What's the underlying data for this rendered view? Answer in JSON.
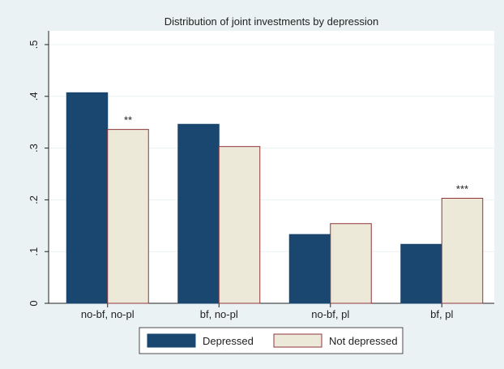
{
  "chart_data": {
    "type": "bar",
    "title": "Distribution of joint investments by depression",
    "categories": [
      "no-bf, no-pl",
      "bf, no-pl",
      "no-bf, pl",
      "bf, pl"
    ],
    "series": [
      {
        "name": "Depressed",
        "color": "#1a476f",
        "values": [
          0.407,
          0.346,
          0.133,
          0.114
        ]
      },
      {
        "name": "Not depressed",
        "color": "#ece9d8",
        "edgecolor": "#90353b",
        "values": [
          0.336,
          0.303,
          0.154,
          0.203
        ],
        "significance": [
          "**",
          null,
          null,
          "***"
        ]
      }
    ],
    "ylim": [
      0,
      0.5
    ],
    "yticks": [
      0,
      {
        "value": 0.1,
        "label": ".1"
      },
      {
        "value": 0.2,
        "label": ".2"
      },
      {
        "value": 0.3,
        "label": ".3"
      },
      {
        "value": 0.4,
        "label": ".4"
      },
      {
        "value": 0.5,
        "label": ".5"
      }
    ],
    "grid": true,
    "legend": "bottom"
  }
}
